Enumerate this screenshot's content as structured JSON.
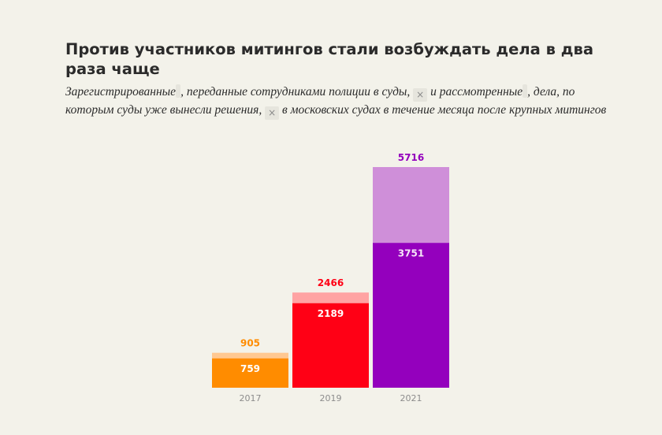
{
  "title": "Против участников митингов стали возбуждать дела в два раза чаще",
  "subtitle": {
    "part1": "Зарегистрированные",
    "part2": ", переданные сотрудниками полиции в суды,",
    "part3": "и рассмотренные",
    "part4": ",",
    "part5": "дела, по которым суды уже вынесли решения,",
    "part6": "в московских судах в течение месяца после крупных митингов",
    "close_glyph": "×"
  },
  "colors": {
    "background": "#f3f2ea",
    "series": [
      {
        "light": "#ffc891",
        "dark": "#ff8c00",
        "text": "#ff8c00"
      },
      {
        "light": "#ffa3a3",
        "dark": "#ff0015",
        "text": "#ff0015"
      },
      {
        "light": "#cf8fd9",
        "dark": "#9400bd",
        "text": "#9400bd"
      }
    ]
  },
  "chart_data": {
    "type": "bar",
    "stacked": false,
    "categories": [
      "2017",
      "2019",
      "2021"
    ],
    "series": [
      {
        "values": [
          905,
          2466,
          5716
        ]
      },
      {
        "values": [
          759,
          2189,
          3751
        ]
      }
    ],
    "ylim": [
      0,
      5716
    ],
    "grid": false,
    "legend": "none"
  }
}
